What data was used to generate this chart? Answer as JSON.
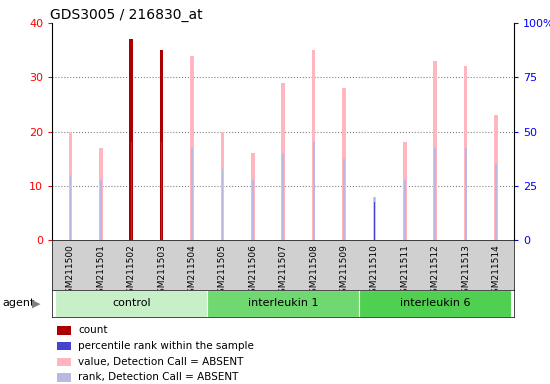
{
  "title": "GDS3005 / 216830_at",
  "samples": [
    "GSM211500",
    "GSM211501",
    "GSM211502",
    "GSM211503",
    "GSM211504",
    "GSM211505",
    "GSM211506",
    "GSM211507",
    "GSM211508",
    "GSM211509",
    "GSM211510",
    "GSM211511",
    "GSM211512",
    "GSM211513",
    "GSM211514"
  ],
  "value_bars": [
    20,
    17,
    37,
    35,
    34,
    20,
    16,
    29,
    35,
    28,
    8,
    18,
    33,
    32,
    23
  ],
  "rank_bars": [
    12,
    11,
    18,
    18,
    17,
    13,
    11,
    16,
    18,
    15,
    8,
    11,
    17,
    17,
    14
  ],
  "count_bars": [
    0,
    0,
    37,
    35,
    0,
    0,
    0,
    0,
    0,
    0,
    0,
    0,
    0,
    0,
    0
  ],
  "pct_rank_bars": [
    0,
    0,
    18,
    18,
    0,
    0,
    0,
    0,
    0,
    0,
    7,
    0,
    0,
    0,
    0
  ],
  "value_color": "#ffb6c1",
  "rank_color": "#b8b8e0",
  "count_color": "#aa0000",
  "pct_rank_color": "#4444cc",
  "ylim_left": [
    0,
    40
  ],
  "ylim_right": [
    0,
    100
  ],
  "yticks_left": [
    0,
    10,
    20,
    30,
    40
  ],
  "yticks_right": [
    0,
    25,
    50,
    75,
    100
  ],
  "ytick_labels_right": [
    "0",
    "25",
    "50",
    "75",
    "100%"
  ],
  "groups": [
    {
      "label": "control",
      "start": 0,
      "end": 5
    },
    {
      "label": "interleukin 1",
      "start": 5,
      "end": 10
    },
    {
      "label": "interleukin 6",
      "start": 10,
      "end": 15
    }
  ],
  "group_colors": [
    "#c8f0c8",
    "#70d870",
    "#50d050"
  ],
  "bg_color": "#d0d0d0",
  "value_bar_width": 0.12,
  "rank_bar_width": 0.06,
  "count_bar_width": 0.12,
  "pct_bar_width": 0.04
}
